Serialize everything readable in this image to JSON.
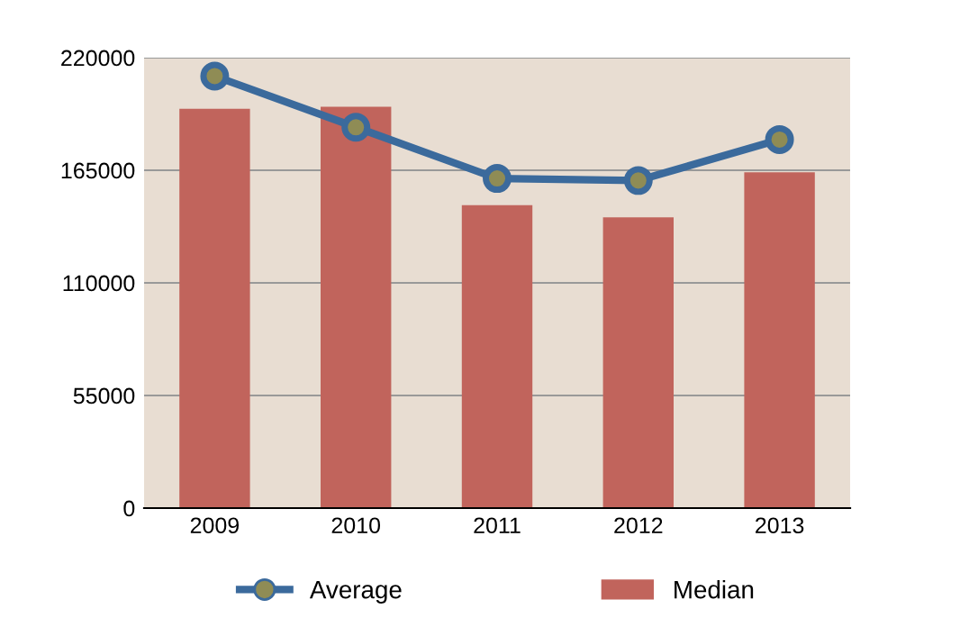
{
  "chart_data": {
    "type": "bar",
    "categories": [
      "2009",
      "2010",
      "2011",
      "2012",
      "2013"
    ],
    "series": [
      {
        "name": "Average",
        "type": "line",
        "color": "#3b6a9c",
        "marker": "circle",
        "values": [
          211000,
          186000,
          161000,
          160000,
          180000
        ]
      },
      {
        "name": "Median",
        "color": "#c1645c",
        "values": [
          195000,
          196000,
          148000,
          142000,
          164000
        ]
      }
    ],
    "ylim": [
      0,
      220000
    ],
    "yticks": [
      0,
      55000,
      110000,
      165000,
      220000
    ],
    "grid": "y",
    "legend": "bottom"
  }
}
